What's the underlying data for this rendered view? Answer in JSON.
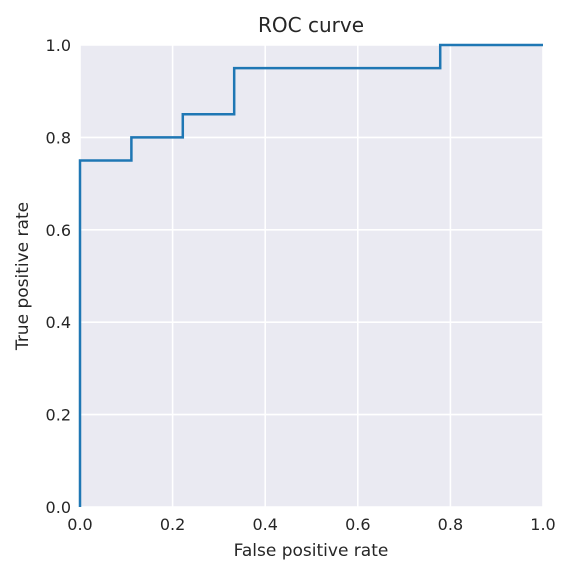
{
  "chart_data": {
    "type": "line",
    "title": "ROC curve",
    "xlabel": "False positive rate",
    "ylabel": "True positive rate",
    "xlim": [
      0.0,
      1.0
    ],
    "ylim": [
      0.0,
      1.0
    ],
    "grid": true,
    "legend": "none",
    "x_ticks": [
      "0.0",
      "0.2",
      "0.4",
      "0.6",
      "0.8",
      "1.0"
    ],
    "y_ticks": [
      "0.0",
      "0.2",
      "0.4",
      "0.6",
      "0.8",
      "1.0"
    ],
    "series": [
      {
        "color": "#1f77b4",
        "x": [
          0.0,
          0.0,
          0.111,
          0.111,
          0.222,
          0.222,
          0.333,
          0.333,
          0.778,
          0.778,
          1.0
        ],
        "y": [
          0.0,
          0.75,
          0.75,
          0.8,
          0.8,
          0.85,
          0.85,
          0.95,
          0.95,
          1.0,
          1.0
        ]
      }
    ]
  },
  "colors": {
    "plot_background": "#eaeaf2",
    "grid": "#ffffff",
    "text": "#262626"
  }
}
